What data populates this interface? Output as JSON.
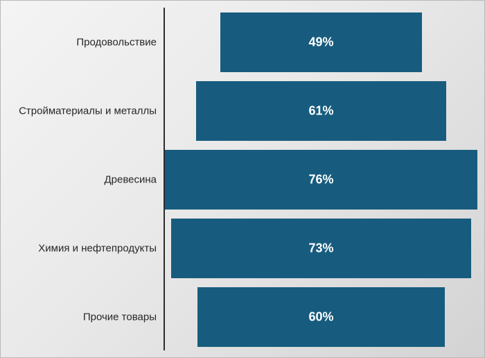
{
  "chart_data": {
    "type": "bar",
    "orientation": "horizontal",
    "layout": "centered (funnel)",
    "categories": [
      "Продовольствие",
      "Стройматериалы и металлы ",
      "Древесина",
      "Химия и нефтепродукты",
      "Прочие товары"
    ],
    "values": [
      49,
      61,
      76,
      73,
      60
    ],
    "value_labels": [
      "49%",
      "61%",
      "76%",
      "73%",
      "60%"
    ],
    "unit": "%",
    "title": "",
    "xlabel": "",
    "ylabel": "",
    "xlim": [
      0,
      76
    ],
    "grid": false,
    "legend": "none",
    "colors": {
      "bar": "#175C7E",
      "bar_label": "#FFFFFF",
      "axis": "#2B2B2B"
    }
  }
}
